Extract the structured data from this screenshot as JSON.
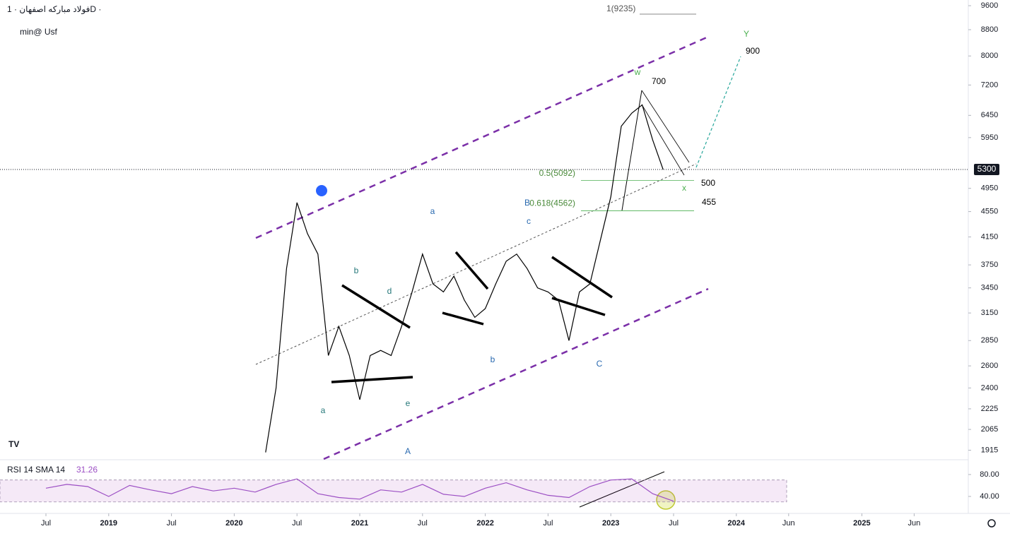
{
  "chart_data": [
    {
      "type": "line",
      "title": "فولاد مبارکه اصفهان · 1D ·",
      "subtitle": "min@ Usf",
      "note": "1(9235)",
      "log_scale": true,
      "grid": false,
      "color": "#000000",
      "x": [
        "2020-04",
        "2020-05",
        "2020-06",
        "2020-07",
        "2020-08",
        "2020-09",
        "2020-10",
        "2020-11",
        "2020-12",
        "2021-01",
        "2021-02",
        "2021-03",
        "2021-04",
        "2021-05",
        "2021-06",
        "2021-07",
        "2021-08",
        "2021-09",
        "2021-10",
        "2021-11",
        "2021-12",
        "2022-01",
        "2022-02",
        "2022-03",
        "2022-04",
        "2022-05",
        "2022-06",
        "2022-07",
        "2022-08",
        "2022-09",
        "2022-10",
        "2022-11",
        "2022-12",
        "2023-01",
        "2023-02",
        "2023-03",
        "2023-04",
        "2023-05",
        "2023-06"
      ],
      "values": [
        1900,
        2400,
        3700,
        4700,
        4200,
        3900,
        2700,
        3000,
        2700,
        2300,
        2700,
        2750,
        2700,
        3000,
        3400,
        3900,
        3500,
        3400,
        3600,
        3300,
        3100,
        3200,
        3500,
        3800,
        3900,
        3700,
        3450,
        3400,
        3300,
        2850,
        3400,
        3500,
        4100,
        4800,
        6200,
        6500,
        6700,
        5900,
        5300
      ],
      "ylim": [
        1850,
        9800
      ],
      "yticks": [
        9600,
        8800,
        8000,
        7200,
        6450,
        5950,
        4950,
        4550,
        4150,
        3750,
        3450,
        3150,
        2850,
        2600,
        2400,
        2225,
        2065,
        1915
      ],
      "xticks": [
        {
          "value": "2018-07",
          "label": "Jul"
        },
        {
          "value": "2019-01",
          "label": "2019"
        },
        {
          "value": "2019-07",
          "label": "Jul"
        },
        {
          "value": "2020-01",
          "label": "2020"
        },
        {
          "value": "2020-07",
          "label": "Jul"
        },
        {
          "value": "2021-01",
          "label": "2021"
        },
        {
          "value": "2021-07",
          "label": "Jul"
        },
        {
          "value": "2022-01",
          "label": "2022"
        },
        {
          "value": "2022-07",
          "label": "Jul"
        },
        {
          "value": "2023-01",
          "label": "2023"
        },
        {
          "value": "2023-07",
          "label": "Jul"
        },
        {
          "value": "2024-01",
          "label": "2024"
        },
        {
          "value": "2024-06",
          "label": "Jun"
        },
        {
          "value": "2025-01",
          "label": "2025"
        },
        {
          "value": "2025-06",
          "label": "Jun"
        }
      ],
      "last_price": 5300,
      "fib_levels": [
        {
          "value": 5092,
          "label": "0.5(5092)"
        },
        {
          "value": 4562,
          "label": "0.618(4562)"
        }
      ],
      "annotations": [
        "b",
        "d",
        "a",
        "e",
        "A",
        "a",
        "b",
        "c",
        "B",
        "C",
        "w",
        "700",
        "Y",
        "900",
        "x",
        "500",
        "455"
      ]
    },
    {
      "type": "line",
      "title": "RSI 14 SMA 14",
      "last_value": 31.26,
      "color": "#9c4fc4",
      "x": [
        "2018-07",
        "2018-09",
        "2018-11",
        "2019-01",
        "2019-03",
        "2019-05",
        "2019-07",
        "2019-09",
        "2019-11",
        "2020-01",
        "2020-03",
        "2020-05",
        "2020-07",
        "2020-09",
        "2020-11",
        "2021-01",
        "2021-03",
        "2021-05",
        "2021-07",
        "2021-09",
        "2021-11",
        "2022-01",
        "2022-03",
        "2022-05",
        "2022-07",
        "2022-09",
        "2022-11",
        "2023-01",
        "2023-03",
        "2023-05",
        "2023-07"
      ],
      "values": [
        55,
        62,
        58,
        40,
        60,
        52,
        45,
        58,
        50,
        55,
        48,
        62,
        72,
        45,
        38,
        35,
        52,
        48,
        62,
        44,
        40,
        55,
        65,
        52,
        42,
        38,
        58,
        70,
        72,
        45,
        31.26
      ],
      "ylim": [
        9,
        107
      ],
      "band": [
        30,
        70
      ],
      "yticks": [
        {
          "value": 80,
          "label": "80.00"
        },
        {
          "value": 40,
          "label": "40.00"
        }
      ]
    }
  ]
}
